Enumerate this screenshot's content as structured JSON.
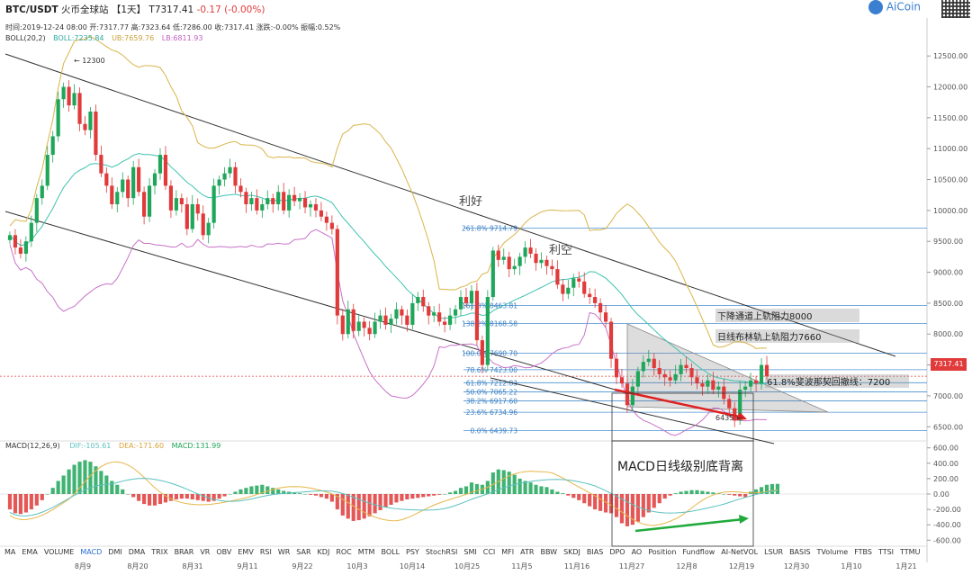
{
  "header": {
    "pair": "BTC/USDT",
    "exchange": "火币全球站",
    "period": "【1天】",
    "last": "T7317.41",
    "change": "-0.17 (-0.00%)"
  },
  "ohlc_line": "时间:2019-12-24 08:00   开:7317.77   高:7323.64   低:7286.00   收:7317.41   涨跌:-0.00%   振幅:0.52%",
  "boll_legend": {
    "name": "BOLL(20,2)",
    "boll": "BOLL:7235.84",
    "ub": "UB:7659.76",
    "lb": "LB:6811.93"
  },
  "macd_legend": {
    "name": "MACD(12,26,9)",
    "dif": "DIF:-105.61",
    "dea": "DEA:-171.60",
    "macd": "MACD:131.99"
  },
  "brand": "AiCoin",
  "price_tag": "7317.41",
  "colors": {
    "up": "#1fa65a",
    "down": "#e03a3a",
    "boll_mid": "#3fc2b0",
    "boll_ub": "#d9b44a",
    "boll_lb": "#c773c7",
    "fib": "#4a8fd0",
    "channel": "#333333",
    "dif": "#e7b64a",
    "dea": "#5cc0c0"
  },
  "toolbar": [
    "MA",
    "EMA",
    "VOLUME",
    "MACD",
    "DMI",
    "DMA",
    "TRIX",
    "BRAR",
    "VR",
    "OBV",
    "EMV",
    "RSI",
    "WR",
    "SAR",
    "KDJ",
    "ROC",
    "MTM",
    "BOLL",
    "PSY",
    "StochRSI",
    "SMI",
    "CCI",
    "MFI",
    "ATR",
    "BBW",
    "SKDJ",
    "BIAS",
    "DPO",
    "AO",
    "Position",
    "Fundflow",
    "AI-NetVOL",
    "LSUR",
    "BASIS",
    "TVolume",
    "FTBS",
    "TTSI",
    "TTMU"
  ],
  "toolbar_active": "MACD",
  "chart_data": [
    {
      "type": "candlestick",
      "x_ticks": [
        "8月9",
        "8月20",
        "8月31",
        "9月11",
        "9月22",
        "10月3",
        "10月14",
        "10月25",
        "11月5",
        "11月16",
        "11月27",
        "12月8",
        "12月19",
        "12月30",
        "1月10",
        "1月21"
      ],
      "y_ticks": [
        "12500.00",
        "12000.00",
        "11500.00",
        "11000.00",
        "10500.00",
        "10000.00",
        "9500.00",
        "9000.00",
        "8500.00",
        "8000.00",
        "7500.00",
        "7000.00",
        "6500.00"
      ],
      "ylim": [
        6300,
        12750
      ],
      "closes": [
        9600,
        9400,
        9300,
        9500,
        9800,
        10200,
        10400,
        10900,
        11200,
        11800,
        12000,
        11700,
        11900,
        11400,
        11300,
        11600,
        10900,
        10600,
        10400,
        10100,
        10300,
        10500,
        10200,
        10700,
        10300,
        9900,
        10400,
        10600,
        10900,
        10400,
        10000,
        10200,
        10100,
        9700,
        10100,
        9950,
        9600,
        9800,
        10400,
        10500,
        10600,
        10700,
        10400,
        10300,
        10100,
        10200,
        10000,
        10100,
        10200,
        10100,
        10300,
        10000,
        10250,
        10150,
        10200,
        10050,
        10100,
        10000,
        9900,
        9800,
        9700,
        8300,
        8000,
        8400,
        8050,
        8200,
        8100,
        8000,
        8200,
        8300,
        8150,
        8250,
        8400,
        8300,
        8150,
        8500,
        8600,
        8450,
        8300,
        8350,
        8200,
        8150,
        8300,
        8400,
        8600,
        8500,
        8700,
        7900,
        7500,
        8600,
        9350,
        9200,
        9250,
        9050,
        9100,
        9250,
        9400,
        9300,
        9150,
        9200,
        9100,
        9050,
        8800,
        8650,
        8750,
        8900,
        8850,
        8650,
        8600,
        8500,
        8350,
        8200,
        7600,
        7300,
        7200,
        6850,
        7150,
        7400,
        7550,
        7600,
        7450,
        7350,
        7300,
        7250,
        7350,
        7500,
        7450,
        7300,
        7200,
        7150,
        7250,
        7100,
        7150,
        6950,
        6800,
        6600,
        7100,
        7150,
        7250,
        7200,
        7500,
        7317
      ],
      "fib_levels": [
        {
          "pct": "261.8%",
          "price": "9714.79",
          "v": 9714.79
        },
        {
          "pct": "161.8%",
          "price": "8463.81",
          "v": 8463.81
        },
        {
          "pct": "138.2%",
          "price": "8168.58",
          "v": 8168.58
        },
        {
          "pct": "100.0%",
          "price": "7690.70",
          "v": 7690.7
        },
        {
          "pct": "78.6%",
          "price": "7423.00",
          "v": 7423.0
        },
        {
          "pct": "61.8%",
          "price": "7212.83",
          "v": 7212.83
        },
        {
          "pct": "50.0%",
          "price": "7065.22",
          "v": 7065.22
        },
        {
          "pct": "38.2%",
          "price": "6917.60",
          "v": 6917.6
        },
        {
          "pct": "23.6%",
          "price": "6734.96",
          "v": 6734.96
        },
        {
          "pct": "0.0%",
          "price": "6439.73",
          "v": 6439.73
        }
      ],
      "annotations": {
        "high": "← 12300",
        "low": "6435 ←",
        "good": "利好",
        "bad": "利空",
        "channel_res": "下降通道上轨阻力8000",
        "boll_res": "日线布林轨上轨阻力7660",
        "fib_support": "61.8%斐波那契回撤线：7200"
      }
    },
    {
      "type": "bar",
      "title": "MACD",
      "y_ticks": [
        "600.00",
        "400.00",
        "200.00",
        "0.00",
        "-200.00",
        "-400.00",
        "-600.00"
      ],
      "ylim": [
        -650,
        650
      ],
      "histogram": [
        -200,
        -250,
        -260,
        -240,
        -200,
        -150,
        -80,
        0,
        80,
        170,
        240,
        320,
        380,
        420,
        440,
        420,
        360,
        300,
        240,
        170,
        120,
        60,
        0,
        -40,
        -90,
        -130,
        -150,
        -150,
        -130,
        -110,
        -90,
        -70,
        -60,
        -60,
        -70,
        -80,
        -90,
        -100,
        -90,
        -60,
        -30,
        0,
        30,
        60,
        80,
        100,
        110,
        120,
        100,
        80,
        60,
        40,
        30,
        20,
        10,
        0,
        -10,
        -20,
        -40,
        -60,
        -100,
        -200,
        -280,
        -320,
        -350,
        -340,
        -320,
        -290,
        -250,
        -210,
        -170,
        -140,
        -110,
        -90,
        -70,
        -60,
        -50,
        -40,
        -30,
        -20,
        -10,
        0,
        20,
        40,
        80,
        100,
        150,
        130,
        120,
        170,
        280,
        320,
        310,
        290,
        250,
        200,
        170,
        150,
        120,
        100,
        90,
        60,
        30,
        10,
        -20,
        -50,
        -80,
        -120,
        -160,
        -200,
        -220,
        -240,
        -250,
        -300,
        -380,
        -420,
        -400,
        -360,
        -300,
        -240,
        -180,
        -120,
        -60,
        -20,
        10,
        30,
        40,
        50,
        50,
        40,
        30,
        20,
        10,
        0,
        -10,
        -20,
        -30,
        -40,
        30,
        60,
        90,
        120,
        130,
        131.99
      ],
      "divergence_label": "MACD日线级别底背离"
    }
  ]
}
